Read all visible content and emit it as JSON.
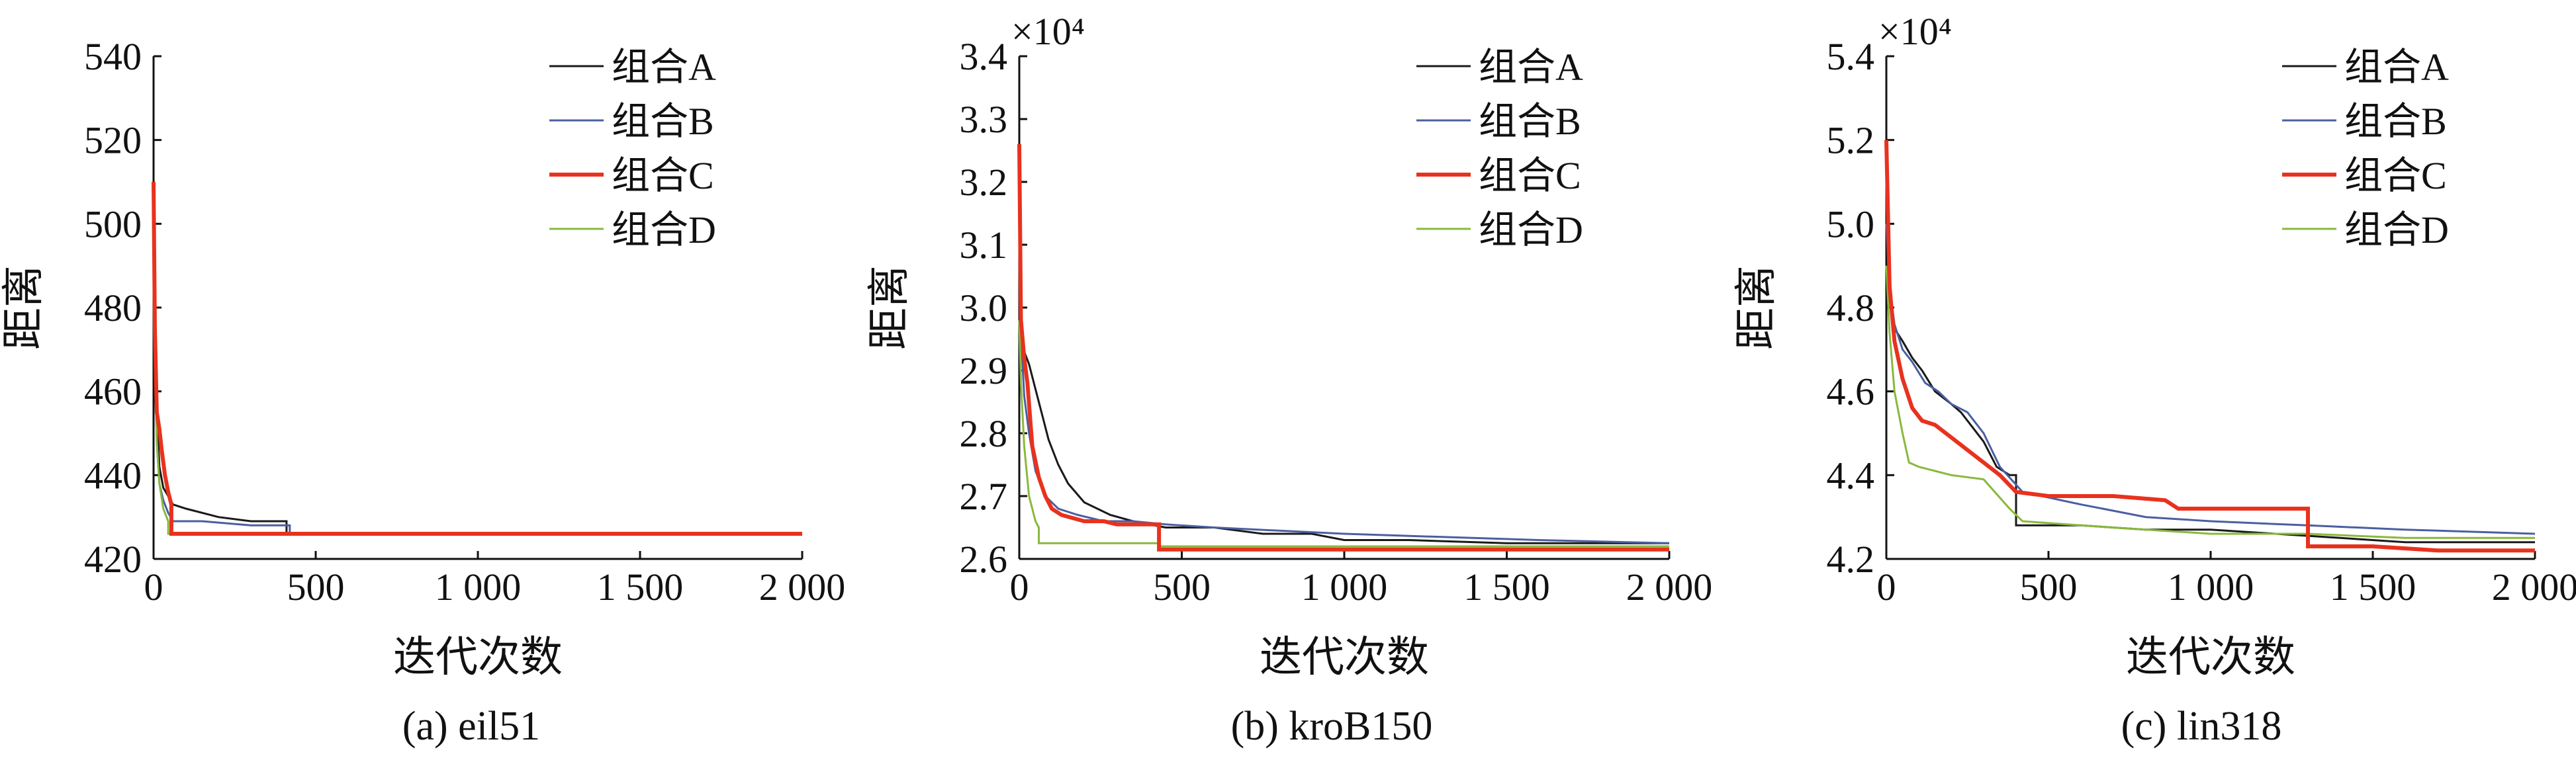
{
  "chart_data": [
    {
      "type": "line",
      "caption": "(a) eil51",
      "xlabel": "迭代次数",
      "ylabel": "距离",
      "xlim": [
        0,
        2000
      ],
      "ylim": [
        420,
        540
      ],
      "xticks": [
        0,
        500,
        1000,
        1500,
        2000
      ],
      "xtick_labels": [
        "0",
        "500",
        "1 000",
        "1 500",
        "2 000"
      ],
      "yticks": [
        420,
        440,
        460,
        480,
        500,
        520,
        540
      ],
      "ytick_labels": [
        "420",
        "440",
        "460",
        "480",
        "500",
        "520",
        "540"
      ],
      "exponent_label": "",
      "grid": false,
      "legend_position": "top-right",
      "series": [
        {
          "name": "组合A",
          "color": "#1a1a1a",
          "width": 3,
          "x": [
            0,
            4,
            10,
            18,
            30,
            45,
            60,
            100,
            200,
            300,
            410,
            410,
            2000
          ],
          "y": [
            505,
            480,
            455,
            442,
            437,
            435,
            433,
            432,
            430,
            429,
            429,
            426,
            426
          ]
        },
        {
          "name": "组合B",
          "color": "#4a5fa0",
          "width": 3,
          "x": [
            0,
            4,
            10,
            18,
            30,
            45,
            60,
            150,
            300,
            420,
            420,
            2000
          ],
          "y": [
            500,
            472,
            448,
            438,
            434,
            431,
            429,
            429,
            428,
            428,
            426,
            426
          ]
        },
        {
          "name": "组合C",
          "color": "#e8321e",
          "width": 6,
          "x": [
            0,
            4,
            10,
            18,
            25,
            35,
            45,
            55,
            55,
            2000
          ],
          "y": [
            510,
            475,
            455,
            451,
            446,
            440,
            436,
            433,
            426,
            426
          ]
        },
        {
          "name": "组合D",
          "color": "#8ab83c",
          "width": 3,
          "x": [
            0,
            4,
            10,
            18,
            30,
            45,
            45,
            2000
          ],
          "y": [
            495,
            468,
            448,
            438,
            432,
            429,
            426,
            426
          ]
        }
      ]
    },
    {
      "type": "line",
      "caption": "(b) kroB150",
      "xlabel": "迭代次数",
      "ylabel": "距离",
      "xlim": [
        0,
        2000
      ],
      "ylim": [
        2.6,
        3.4
      ],
      "xticks": [
        0,
        500,
        1000,
        1500,
        2000
      ],
      "xtick_labels": [
        "0",
        "500",
        "1 000",
        "1 500",
        "2 000"
      ],
      "yticks": [
        2.6,
        2.7,
        2.8,
        2.9,
        3.0,
        3.1,
        3.2,
        3.3,
        3.4
      ],
      "ytick_labels": [
        "2.6",
        "2.7",
        "2.8",
        "2.9",
        "3.0",
        "3.1",
        "3.2",
        "3.3",
        "3.4"
      ],
      "exponent_label": "×10⁴",
      "grid": false,
      "legend_position": "top-right",
      "series": [
        {
          "name": "组合A",
          "color": "#1a1a1a",
          "width": 3,
          "x": [
            0,
            5,
            15,
            30,
            50,
            70,
            90,
            120,
            150,
            200,
            280,
            350,
            450,
            600,
            750,
            900,
            1000,
            1200,
            1500,
            1800,
            2000
          ],
          "y": [
            3.05,
            2.97,
            2.93,
            2.91,
            2.87,
            2.83,
            2.79,
            2.75,
            2.72,
            2.69,
            2.67,
            2.66,
            2.65,
            2.65,
            2.64,
            2.64,
            2.63,
            2.63,
            2.625,
            2.625,
            2.625
          ]
        },
        {
          "name": "组合B",
          "color": "#4a5fa0",
          "width": 3,
          "x": [
            0,
            5,
            15,
            30,
            50,
            80,
            120,
            180,
            260,
            350,
            450,
            600,
            800,
            1000,
            1300,
            1600,
            2000
          ],
          "y": [
            3.1,
            2.96,
            2.86,
            2.8,
            2.74,
            2.7,
            2.68,
            2.67,
            2.66,
            2.66,
            2.655,
            2.65,
            2.645,
            2.64,
            2.635,
            2.63,
            2.625
          ]
        },
        {
          "name": "组合C",
          "color": "#e8321e",
          "width": 6,
          "x": [
            0,
            5,
            15,
            25,
            40,
            60,
            80,
            100,
            130,
            200,
            260,
            300,
            430,
            430,
            600,
            800,
            1000,
            1400,
            1700,
            2000
          ],
          "y": [
            3.26,
            2.98,
            2.92,
            2.88,
            2.78,
            2.73,
            2.7,
            2.68,
            2.67,
            2.66,
            2.66,
            2.655,
            2.655,
            2.615,
            2.615,
            2.615,
            2.615,
            2.615,
            2.615,
            2.615
          ]
        },
        {
          "name": "组合D",
          "color": "#8ab83c",
          "width": 3,
          "x": [
            0,
            5,
            15,
            30,
            50,
            60,
            60,
            200,
            430,
            430,
            800,
            1200,
            1600,
            2000
          ],
          "y": [
            2.98,
            2.88,
            2.78,
            2.7,
            2.66,
            2.65,
            2.625,
            2.625,
            2.625,
            2.62,
            2.62,
            2.62,
            2.62,
            2.62
          ]
        }
      ]
    },
    {
      "type": "line",
      "caption": "(c) lin318",
      "xlabel": "迭代次数",
      "ylabel": "距离",
      "xlim": [
        0,
        2000
      ],
      "ylim": [
        4.2,
        5.4
      ],
      "xticks": [
        0,
        500,
        1000,
        1500,
        2000
      ],
      "xtick_labels": [
        "0",
        "500",
        "1 000",
        "1 500",
        "2 000"
      ],
      "yticks": [
        4.2,
        4.4,
        4.6,
        4.8,
        5.0,
        5.2,
        5.4
      ],
      "ytick_labels": [
        "4.2",
        "4.4",
        "4.6",
        "4.8",
        "5.0",
        "5.2",
        "5.4"
      ],
      "exponent_label": "×10⁴",
      "grid": false,
      "legend_position": "top-right",
      "series": [
        {
          "name": "组合A",
          "color": "#1a1a1a",
          "width": 3,
          "x": [
            0,
            10,
            25,
            50,
            80,
            110,
            150,
            200,
            230,
            260,
            300,
            340,
            380,
            400,
            400,
            600,
            800,
            1000,
            1200,
            1400,
            1600,
            2000
          ],
          "y": [
            5.05,
            4.86,
            4.75,
            4.72,
            4.68,
            4.65,
            4.6,
            4.57,
            4.55,
            4.52,
            4.48,
            4.42,
            4.4,
            4.4,
            4.28,
            4.28,
            4.27,
            4.27,
            4.26,
            4.25,
            4.24,
            4.24
          ]
        },
        {
          "name": "组合B",
          "color": "#4a5fa0",
          "width": 3,
          "x": [
            0,
            10,
            25,
            50,
            80,
            120,
            160,
            200,
            250,
            300,
            350,
            420,
            600,
            800,
            1000,
            1300,
            1600,
            2000
          ],
          "y": [
            5.0,
            4.85,
            4.76,
            4.7,
            4.67,
            4.62,
            4.6,
            4.57,
            4.55,
            4.5,
            4.42,
            4.36,
            4.33,
            4.3,
            4.29,
            4.28,
            4.27,
            4.26
          ]
        },
        {
          "name": "组合C",
          "color": "#e8321e",
          "width": 6,
          "x": [
            0,
            10,
            25,
            50,
            80,
            110,
            150,
            200,
            250,
            300,
            350,
            400,
            500,
            700,
            860,
            900,
            1000,
            1300,
            1300,
            1500,
            1700,
            2000
          ],
          "y": [
            5.2,
            4.85,
            4.72,
            4.63,
            4.56,
            4.53,
            4.52,
            4.49,
            4.46,
            4.43,
            4.4,
            4.36,
            4.35,
            4.35,
            4.34,
            4.32,
            4.32,
            4.32,
            4.23,
            4.23,
            4.22,
            4.22
          ]
        },
        {
          "name": "组合D",
          "color": "#8ab83c",
          "width": 3,
          "x": [
            0,
            10,
            25,
            50,
            70,
            100,
            150,
            200,
            300,
            380,
            420,
            600,
            800,
            1000,
            1300,
            1600,
            2000
          ],
          "y": [
            4.9,
            4.74,
            4.6,
            4.5,
            4.43,
            4.42,
            4.41,
            4.4,
            4.39,
            4.32,
            4.29,
            4.28,
            4.27,
            4.26,
            4.26,
            4.25,
            4.25
          ]
        }
      ]
    }
  ]
}
